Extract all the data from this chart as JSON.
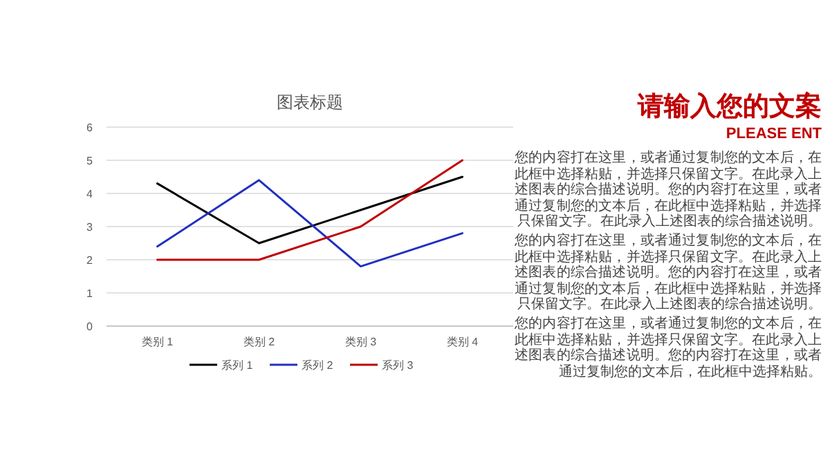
{
  "chart_data": [
    {
      "type": "line",
      "title": "图表标题",
      "categories": [
        "类别 1",
        "类别 2",
        "类别 3",
        "类别 4"
      ],
      "series": [
        {
          "name": "系列 1",
          "color": "#000000",
          "values": [
            4.3,
            2.5,
            3.5,
            4.5
          ]
        },
        {
          "name": "系列 2",
          "color": "#2030c0",
          "values": [
            2.4,
            4.4,
            1.8,
            2.8
          ]
        },
        {
          "name": "系列 3",
          "color": "#c00000",
          "values": [
            2,
            2,
            3,
            5
          ]
        }
      ],
      "ylim": [
        0,
        6
      ],
      "yticks": [
        0,
        1,
        2,
        3,
        4,
        5,
        6
      ],
      "grid": "y",
      "legend": "bottom",
      "marker": "none",
      "line_style": "solid"
    },
    {
      "type": "other",
      "title": "请输入您的文案",
      "subtitle": "PLEASE ENT",
      "annotations": [
        "您的内容打在这里，或者通过复制您的文本后，在此框中选择粘贴，并选择只保留文字。在此录入上述图表的综合描述说明。您的内容打在这里，或者通过复制您的文本后，在此框中选择粘贴，并选择只保留文字。在此录入上述图表的综合描述说明。",
        "您的内容打在这里，或者通过复制您的文本后，在此框中选择粘贴，并选择只保留文字。在此录入上述图表的综合描述说明。您的内容打在这里，或者通过复制您的文本后，在此框中选择粘贴，并选择只保留文字。在此录入上述图表的综合描述说明。",
        "您的内容打在这里，或者通过复制您的文本后，在此框中选择粘贴，并选择只保留文字。在此录入上述图表的综合描述说明。您的内容打在这里，或者通过复制您的文本后，在此框中选择粘贴。"
      ]
    }
  ]
}
